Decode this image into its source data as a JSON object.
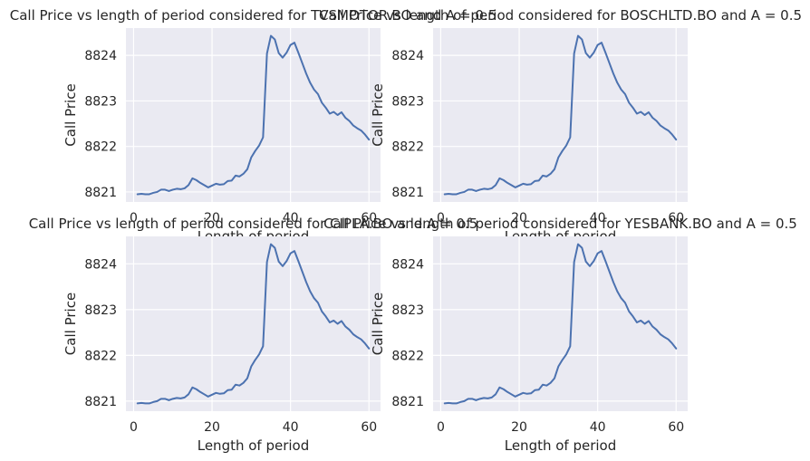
{
  "chart_data": [
    {
      "type": "line",
      "title": "Call Price vs length of period considered for TVSMOTOR.BO and A = 0.5",
      "xlabel": "Length of period",
      "ylabel": "Call Price",
      "xlim": [
        -1.95,
        62.95
      ],
      "ylim": [
        8820.78,
        8824.6
      ],
      "xticks": [
        0,
        20,
        40,
        60
      ],
      "yticks": [
        8821,
        8822,
        8823,
        8824
      ],
      "grid": true,
      "series": [
        {
          "x": [
            1,
            2,
            3,
            4,
            5,
            6,
            7,
            8,
            9,
            10,
            11,
            12,
            13,
            14,
            15,
            16,
            17,
            18,
            19,
            20,
            21,
            22,
            23,
            24,
            25,
            26,
            27,
            28,
            29,
            30,
            31,
            32,
            33,
            34,
            35,
            36,
            37,
            38,
            39,
            40,
            41,
            42,
            43,
            44,
            45,
            46,
            47,
            48,
            49,
            50,
            51,
            52,
            53,
            54,
            55,
            56,
            57,
            58,
            59,
            60
          ],
          "y": [
            8820.95,
            8820.96,
            8820.95,
            8820.95,
            8820.98,
            8821.0,
            8821.05,
            8821.05,
            8821.02,
            8821.05,
            8821.07,
            8821.06,
            8821.08,
            8821.15,
            8821.3,
            8821.26,
            8821.2,
            8821.15,
            8821.1,
            8821.14,
            8821.18,
            8821.16,
            8821.17,
            8821.24,
            8821.25,
            8821.36,
            8821.34,
            8821.4,
            8821.5,
            8821.76,
            8821.9,
            8822.02,
            8822.2,
            8824.04,
            8824.43,
            8824.35,
            8824.05,
            8823.95,
            8824.06,
            8824.23,
            8824.28,
            8824.06,
            8823.83,
            8823.6,
            8823.4,
            8823.25,
            8823.15,
            8822.96,
            8822.85,
            8822.72,
            8822.76,
            8822.69,
            8822.75,
            8822.63,
            8822.56,
            8822.46,
            8822.4,
            8822.35,
            8822.26,
            8822.15
          ]
        }
      ]
    },
    {
      "type": "line",
      "title": "Call Price vs length of period considered for BOSCHLTD.BO and A = 0.5",
      "xlabel": "Length of period",
      "ylabel": "Call Price",
      "xlim": [
        -1.95,
        62.95
      ],
      "ylim": [
        8820.78,
        8824.6
      ],
      "xticks": [
        0,
        20,
        40,
        60
      ],
      "yticks": [
        8821,
        8822,
        8823,
        8824
      ],
      "grid": true,
      "series": [
        {
          "x": [
            1,
            2,
            3,
            4,
            5,
            6,
            7,
            8,
            9,
            10,
            11,
            12,
            13,
            14,
            15,
            16,
            17,
            18,
            19,
            20,
            21,
            22,
            23,
            24,
            25,
            26,
            27,
            28,
            29,
            30,
            31,
            32,
            33,
            34,
            35,
            36,
            37,
            38,
            39,
            40,
            41,
            42,
            43,
            44,
            45,
            46,
            47,
            48,
            49,
            50,
            51,
            52,
            53,
            54,
            55,
            56,
            57,
            58,
            59,
            60
          ],
          "y": [
            8820.95,
            8820.96,
            8820.95,
            8820.95,
            8820.98,
            8821.0,
            8821.05,
            8821.05,
            8821.02,
            8821.05,
            8821.07,
            8821.06,
            8821.08,
            8821.15,
            8821.3,
            8821.26,
            8821.2,
            8821.15,
            8821.1,
            8821.14,
            8821.18,
            8821.16,
            8821.17,
            8821.24,
            8821.25,
            8821.36,
            8821.34,
            8821.4,
            8821.5,
            8821.76,
            8821.9,
            8822.02,
            8822.2,
            8824.04,
            8824.43,
            8824.35,
            8824.05,
            8823.95,
            8824.06,
            8824.23,
            8824.28,
            8824.06,
            8823.83,
            8823.6,
            8823.4,
            8823.25,
            8823.15,
            8822.96,
            8822.85,
            8822.72,
            8822.76,
            8822.69,
            8822.75,
            8822.63,
            8822.56,
            8822.46,
            8822.4,
            8822.35,
            8822.26,
            8822.15
          ]
        }
      ]
    },
    {
      "type": "line",
      "title": "Call Price vs length of period considered for CIPLA.BO and A = 0.5",
      "xlabel": "Length of period",
      "ylabel": "Call Price",
      "xlim": [
        -1.95,
        62.95
      ],
      "ylim": [
        8820.78,
        8824.6
      ],
      "xticks": [
        0,
        20,
        40,
        60
      ],
      "yticks": [
        8821,
        8822,
        8823,
        8824
      ],
      "grid": true,
      "series": [
        {
          "x": [
            1,
            2,
            3,
            4,
            5,
            6,
            7,
            8,
            9,
            10,
            11,
            12,
            13,
            14,
            15,
            16,
            17,
            18,
            19,
            20,
            21,
            22,
            23,
            24,
            25,
            26,
            27,
            28,
            29,
            30,
            31,
            32,
            33,
            34,
            35,
            36,
            37,
            38,
            39,
            40,
            41,
            42,
            43,
            44,
            45,
            46,
            47,
            48,
            49,
            50,
            51,
            52,
            53,
            54,
            55,
            56,
            57,
            58,
            59,
            60
          ],
          "y": [
            8820.95,
            8820.96,
            8820.95,
            8820.95,
            8820.98,
            8821.0,
            8821.05,
            8821.05,
            8821.02,
            8821.05,
            8821.07,
            8821.06,
            8821.08,
            8821.15,
            8821.3,
            8821.26,
            8821.2,
            8821.15,
            8821.1,
            8821.14,
            8821.18,
            8821.16,
            8821.17,
            8821.24,
            8821.25,
            8821.36,
            8821.34,
            8821.4,
            8821.5,
            8821.76,
            8821.9,
            8822.02,
            8822.2,
            8824.04,
            8824.43,
            8824.35,
            8824.05,
            8823.95,
            8824.06,
            8824.23,
            8824.28,
            8824.06,
            8823.83,
            8823.6,
            8823.4,
            8823.25,
            8823.15,
            8822.96,
            8822.85,
            8822.72,
            8822.76,
            8822.69,
            8822.75,
            8822.63,
            8822.56,
            8822.46,
            8822.4,
            8822.35,
            8822.26,
            8822.15
          ]
        }
      ]
    },
    {
      "type": "line",
      "title": "Call Price vs length of period considered for YESBANK.BO and A = 0.5",
      "xlabel": "Length of period",
      "ylabel": "Call Price",
      "xlim": [
        -1.95,
        62.95
      ],
      "ylim": [
        8820.78,
        8824.6
      ],
      "xticks": [
        0,
        20,
        40,
        60
      ],
      "yticks": [
        8821,
        8822,
        8823,
        8824
      ],
      "grid": true,
      "series": [
        {
          "x": [
            1,
            2,
            3,
            4,
            5,
            6,
            7,
            8,
            9,
            10,
            11,
            12,
            13,
            14,
            15,
            16,
            17,
            18,
            19,
            20,
            21,
            22,
            23,
            24,
            25,
            26,
            27,
            28,
            29,
            30,
            31,
            32,
            33,
            34,
            35,
            36,
            37,
            38,
            39,
            40,
            41,
            42,
            43,
            44,
            45,
            46,
            47,
            48,
            49,
            50,
            51,
            52,
            53,
            54,
            55,
            56,
            57,
            58,
            59,
            60
          ],
          "y": [
            8820.95,
            8820.96,
            8820.95,
            8820.95,
            8820.98,
            8821.0,
            8821.05,
            8821.05,
            8821.02,
            8821.05,
            8821.07,
            8821.06,
            8821.08,
            8821.15,
            8821.3,
            8821.26,
            8821.2,
            8821.15,
            8821.1,
            8821.14,
            8821.18,
            8821.16,
            8821.17,
            8821.24,
            8821.25,
            8821.36,
            8821.34,
            8821.4,
            8821.5,
            8821.76,
            8821.9,
            8822.02,
            8822.2,
            8824.04,
            8824.43,
            8824.35,
            8824.05,
            8823.95,
            8824.06,
            8824.23,
            8824.28,
            8824.06,
            8823.83,
            8823.6,
            8823.4,
            8823.25,
            8823.15,
            8822.96,
            8822.85,
            8822.72,
            8822.76,
            8822.69,
            8822.75,
            8822.63,
            8822.56,
            8822.46,
            8822.4,
            8822.35,
            8822.26,
            8822.15
          ]
        }
      ]
    }
  ],
  "colors": {
    "plot_background": "#eaeaf2",
    "grid": "#ffffff",
    "line": "#4c72b0",
    "text": "#262626"
  }
}
